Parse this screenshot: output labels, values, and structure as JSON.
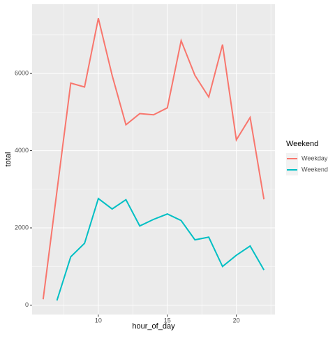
{
  "chart_data": {
    "type": "line",
    "x_label": "hour_of_day",
    "y_label": "total",
    "legend_title": "Weekend",
    "x": [
      6,
      7,
      8,
      9,
      10,
      11,
      12,
      13,
      14,
      15,
      16,
      17,
      18,
      19,
      20,
      21,
      22
    ],
    "series": [
      {
        "name": "Weekday",
        "color": "#F8766D",
        "values": [
          150,
          2950,
          5750,
          5650,
          7430,
          5950,
          4670,
          4960,
          4930,
          5110,
          6850,
          5950,
          5390,
          6750,
          4280,
          4860,
          2740
        ]
      },
      {
        "name": "Weekend",
        "color": "#00BFC4",
        "values": [
          null,
          120,
          1250,
          1600,
          2760,
          2490,
          2730,
          2050,
          2220,
          2360,
          2190,
          1690,
          1760,
          1000,
          1290,
          1530,
          910
        ]
      }
    ],
    "xlim": [
      5.2,
      22.8
    ],
    "ylim": [
      -245,
      7795
    ],
    "xticks": [
      10,
      15,
      20
    ],
    "yticks": [
      0,
      2000,
      4000,
      6000
    ],
    "grid": true,
    "legend": "right"
  }
}
